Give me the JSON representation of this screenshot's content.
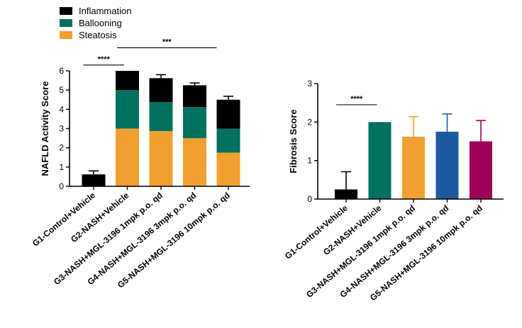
{
  "legend": {
    "items": [
      {
        "label": "Inflammation",
        "color": "#000000"
      },
      {
        "label": "Ballooning",
        "color": "#00705f"
      },
      {
        "label": "Steatosis",
        "color": "#f0a030"
      }
    ]
  },
  "chart_data": [
    {
      "type": "bar",
      "stacked": true,
      "title": "",
      "ylabel": "NAFLD Activity Score",
      "xlabel": "",
      "ylim": [
        0,
        6
      ],
      "yticks": [
        "0",
        "1",
        "2",
        "3",
        "4",
        "5",
        "6"
      ],
      "categories": [
        "G1-Control+Vehicle",
        "G2-NASH+Vehicle",
        "G3-NASH+MGL-3196 1mpk p.o. qd",
        "G4-NASH+MGL-3196 3mpk p.o. qd",
        "G5-NASH+MGL-3196 10mpk p.o. qd"
      ],
      "series": [
        {
          "name": "Steatosis",
          "color": "#f0a030",
          "values": [
            0,
            3.0,
            2.87,
            2.5,
            1.75
          ],
          "errors": [
            0,
            0,
            0.12,
            0.25,
            0.25
          ]
        },
        {
          "name": "Ballooning",
          "color": "#00705f",
          "values": [
            0,
            2.0,
            1.5,
            1.62,
            1.25
          ],
          "errors": [
            0,
            0,
            0,
            0,
            0
          ]
        },
        {
          "name": "Inflammation",
          "color": "#000000",
          "values": [
            0.62,
            1.0,
            1.25,
            1.13,
            1.5
          ],
          "errors": [
            0.18,
            0,
            0.18,
            0.12,
            0.18
          ]
        }
      ],
      "significance": [
        {
          "label": "****",
          "from": 0,
          "to": 1,
          "level": 6.3
        },
        {
          "label": "***",
          "from": 1,
          "to": 4,
          "level": 7.2
        }
      ]
    },
    {
      "type": "bar",
      "stacked": false,
      "title": "",
      "ylabel": "Fibrosis Score",
      "xlabel": "",
      "ylim": [
        0,
        3
      ],
      "yticks": [
        "0",
        "1",
        "2",
        "3"
      ],
      "categories": [
        "G1-Control+Vehicle",
        "G2-NASH+Vehicle",
        "G3-NASH+MGL-3196 1mpk p.o. qd",
        "G4-NASH+MGL-3196 3mpk p.o. qd",
        "G5-NASH+MGL-3196 10mpk p.o. qd"
      ],
      "values": [
        0.25,
        2.0,
        1.62,
        1.75,
        1.5
      ],
      "errors": [
        0.46,
        0,
        0.52,
        0.46,
        0.54
      ],
      "colors": [
        "#000000",
        "#00705f",
        "#f0a030",
        "#1e5aa0",
        "#9c0057"
      ],
      "significance": [
        {
          "label": "****",
          "from": 0,
          "to": 1,
          "level": 2.45
        }
      ]
    }
  ]
}
